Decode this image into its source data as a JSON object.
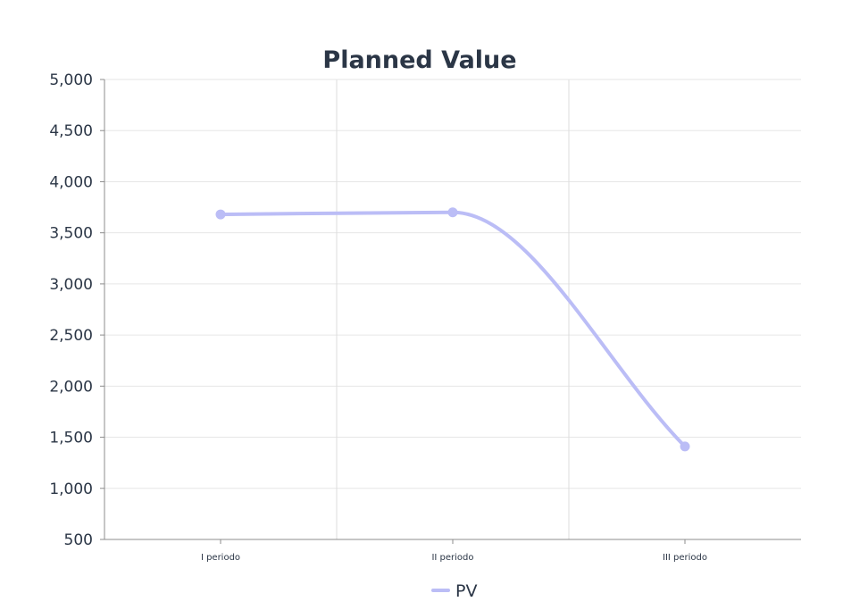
{
  "chart_data": {
    "type": "line",
    "title": "Planned Value",
    "categories": [
      "I periodo",
      "II periodo",
      "III periodo"
    ],
    "series": [
      {
        "name": "PV",
        "values": [
          3680,
          3700,
          1410
        ],
        "color": "#bbbdf6"
      }
    ],
    "ylim": [
      500,
      5000
    ],
    "yticks": [
      "500",
      "1,000",
      "1,500",
      "2,000",
      "2,500",
      "3,000",
      "3,500",
      "4,000",
      "4,500",
      "5,000"
    ],
    "ytick_values": [
      500,
      1000,
      1500,
      2000,
      2500,
      3000,
      3500,
      4000,
      4500,
      5000
    ],
    "grid": true,
    "legend_position": "bottom",
    "curve": "smooth"
  }
}
